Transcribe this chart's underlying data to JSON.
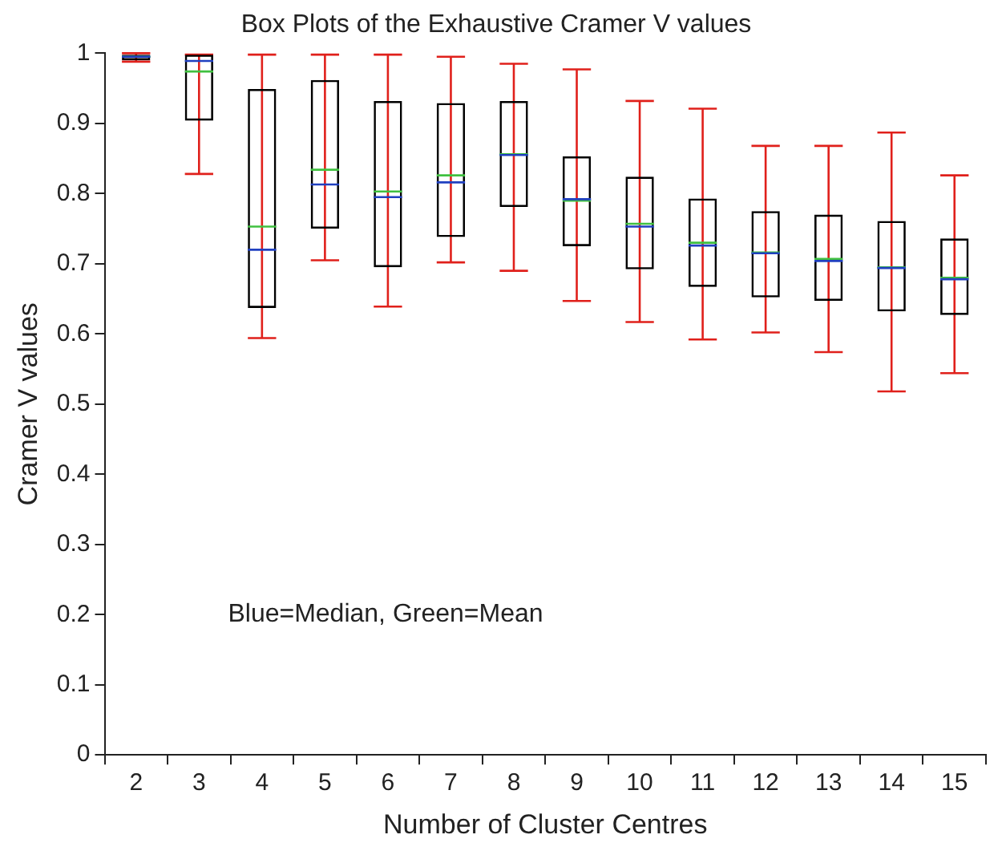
{
  "chart_data": {
    "type": "box",
    "title": "Box Plots of the Exhaustive Cramer V values",
    "xlabel": "Number of Cluster Centres",
    "ylabel": "Cramer V values",
    "categories": [
      "2",
      "3",
      "4",
      "5",
      "6",
      "7",
      "8",
      "9",
      "10",
      "11",
      "12",
      "13",
      "14",
      "15"
    ],
    "ylim": [
      0,
      1
    ],
    "yticks": [
      0,
      0.1,
      0.2,
      0.3,
      0.4,
      0.5,
      0.6,
      0.7,
      0.8,
      0.9,
      1
    ],
    "grid": false,
    "legend": false,
    "annotations": [
      "Blue=Median, Green=Mean"
    ],
    "series": [
      {
        "color": "#000000",
        "boxes": [
          {
            "low": 0.988,
            "q1": 0.99,
            "median": 0.995,
            "q3": 0.998,
            "high": 1.0,
            "mean": 0.995
          },
          {
            "low": 0.828,
            "q1": 0.904,
            "median": 0.989,
            "q3": 0.998,
            "high": 0.998,
            "mean": 0.974
          },
          {
            "low": 0.594,
            "q1": 0.637,
            "median": 0.72,
            "q3": 0.949,
            "high": 0.998,
            "mean": 0.753
          },
          {
            "low": 0.705,
            "q1": 0.75,
            "median": 0.813,
            "q3": 0.962,
            "high": 0.998,
            "mean": 0.834
          },
          {
            "low": 0.639,
            "q1": 0.695,
            "median": 0.795,
            "q3": 0.932,
            "high": 0.998,
            "mean": 0.803
          },
          {
            "low": 0.702,
            "q1": 0.738,
            "median": 0.816,
            "q3": 0.929,
            "high": 0.995,
            "mean": 0.826
          },
          {
            "low": 0.69,
            "q1": 0.781,
            "median": 0.855,
            "q3": 0.932,
            "high": 0.985,
            "mean": 0.856
          },
          {
            "low": 0.647,
            "q1": 0.725,
            "median": 0.792,
            "q3": 0.853,
            "high": 0.977,
            "mean": 0.79
          },
          {
            "low": 0.617,
            "q1": 0.692,
            "median": 0.753,
            "q3": 0.824,
            "high": 0.932,
            "mean": 0.757
          },
          {
            "low": 0.592,
            "q1": 0.667,
            "median": 0.726,
            "q3": 0.793,
            "high": 0.921,
            "mean": 0.73
          },
          {
            "low": 0.602,
            "q1": 0.652,
            "median": 0.715,
            "q3": 0.775,
            "high": 0.868,
            "mean": 0.716
          },
          {
            "low": 0.574,
            "q1": 0.647,
            "median": 0.704,
            "q3": 0.77,
            "high": 0.868,
            "mean": 0.707
          },
          {
            "low": 0.518,
            "q1": 0.632,
            "median": 0.694,
            "q3": 0.761,
            "high": 0.887,
            "mean": 0.695
          },
          {
            "low": 0.544,
            "q1": 0.627,
            "median": 0.678,
            "q3": 0.736,
            "high": 0.826,
            "mean": 0.68
          }
        ]
      }
    ]
  }
}
